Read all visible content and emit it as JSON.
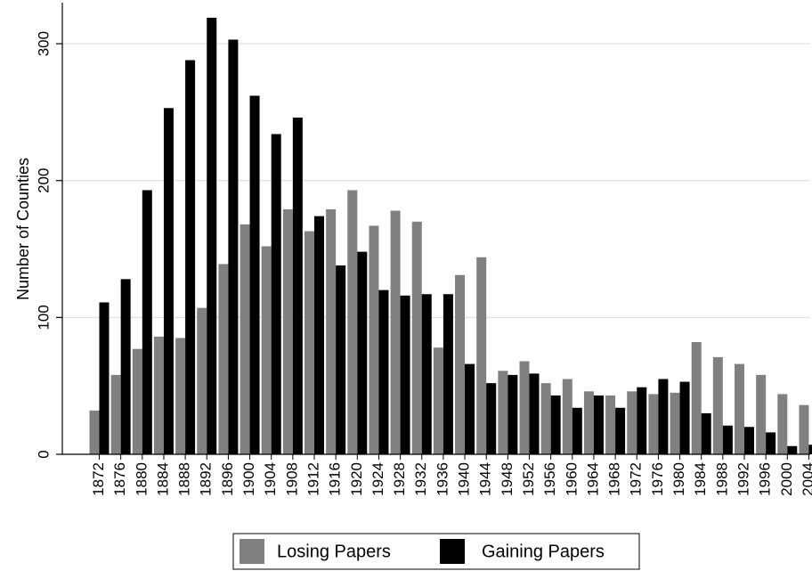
{
  "chart_data": {
    "type": "bar",
    "title": "",
    "xlabel": "",
    "ylabel": "Number of Counties",
    "ylim": [
      0,
      330
    ],
    "yticks": [
      0,
      100,
      200,
      300
    ],
    "grid": true,
    "legend_position": "bottom",
    "categories": [
      "1872",
      "1876",
      "1880",
      "1884",
      "1888",
      "1892",
      "1896",
      "1900",
      "1904",
      "1908",
      "1912",
      "1916",
      "1920",
      "1924",
      "1928",
      "1932",
      "1936",
      "1940",
      "1944",
      "1948",
      "1952",
      "1956",
      "1960",
      "1964",
      "1968",
      "1972",
      "1976",
      "1980",
      "1984",
      "1988",
      "1992",
      "1996",
      "2000",
      "2004"
    ],
    "series": [
      {
        "name": "Losing Papers",
        "color": "#808080",
        "values": [
          32,
          58,
          77,
          86,
          85,
          107,
          139,
          168,
          152,
          179,
          163,
          179,
          193,
          167,
          178,
          170,
          78,
          131,
          144,
          61,
          68,
          52,
          55,
          46,
          43,
          46,
          44,
          45,
          82,
          71,
          66,
          58,
          44,
          36
        ]
      },
      {
        "name": "Gaining Papers",
        "color": "#000000",
        "values": [
          111,
          128,
          193,
          253,
          288,
          319,
          303,
          262,
          234,
          246,
          174,
          138,
          148,
          120,
          116,
          117,
          117,
          66,
          52,
          58,
          59,
          43,
          34,
          43,
          34,
          49,
          55,
          53,
          30,
          21,
          20,
          16,
          6,
          7
        ]
      }
    ]
  }
}
